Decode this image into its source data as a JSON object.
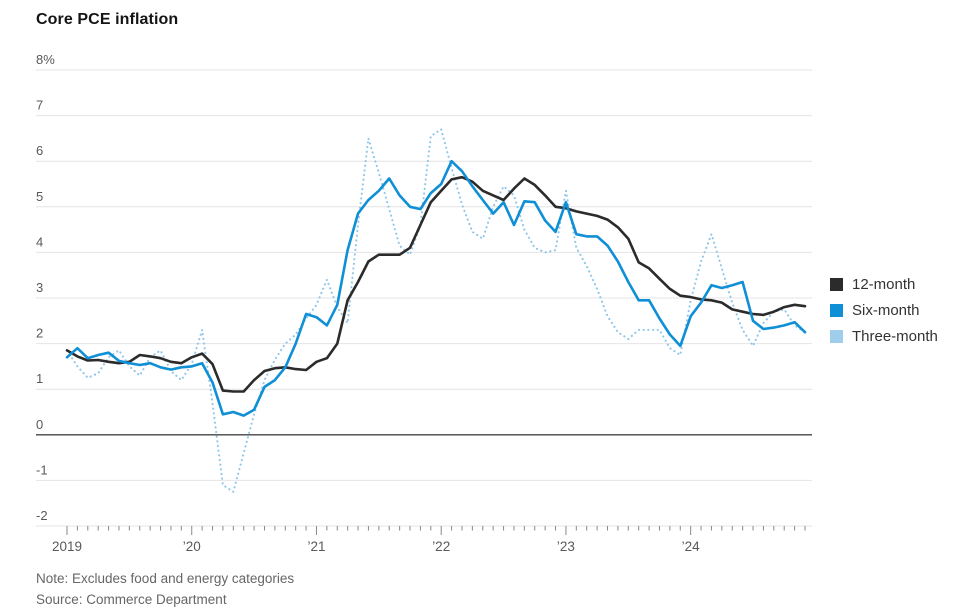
{
  "title": "Core PCE inflation",
  "note": "Note: Excludes food and energy categories",
  "source": "Source: Commerce Department",
  "legend": [
    {
      "label": "12-month",
      "color": "#2b2b2b"
    },
    {
      "label": "Six-month",
      "color": "#0f8fd6"
    },
    {
      "label": "Three-month",
      "color": "#9fcdec"
    }
  ],
  "colors": {
    "grid": "#e4e4e4",
    "zero_line": "#444444",
    "tick": "#888888",
    "axis_label": "#595959",
    "title": "#141414",
    "note": "#666666"
  },
  "chart_data": {
    "type": "line",
    "title": "Core PCE inflation",
    "ylabel": "",
    "xlabel": "",
    "ylim": [
      -2,
      8
    ],
    "grid": "horizontal",
    "legend_position": "right",
    "y_ticks": [
      {
        "value": 8,
        "label": "8%"
      },
      {
        "value": 7,
        "label": "7"
      },
      {
        "value": 6,
        "label": "6"
      },
      {
        "value": 5,
        "label": "5"
      },
      {
        "value": 4,
        "label": "4"
      },
      {
        "value": 3,
        "label": "3"
      },
      {
        "value": 2,
        "label": "2"
      },
      {
        "value": 1,
        "label": "1"
      },
      {
        "value": 0,
        "label": "0"
      },
      {
        "value": -1,
        "label": "-1"
      },
      {
        "value": -2,
        "label": "-2"
      }
    ],
    "x_ticks": [
      {
        "month_index": 0,
        "label": "2019"
      },
      {
        "month_index": 12,
        "label": "’20"
      },
      {
        "month_index": 24,
        "label": "’21"
      },
      {
        "month_index": 36,
        "label": "’22"
      },
      {
        "month_index": 48,
        "label": "’23"
      },
      {
        "month_index": 60,
        "label": "’24"
      }
    ],
    "x": [
      "2019-01",
      "2019-02",
      "2019-03",
      "2019-04",
      "2019-05",
      "2019-06",
      "2019-07",
      "2019-08",
      "2019-09",
      "2019-10",
      "2019-11",
      "2019-12",
      "2020-01",
      "2020-02",
      "2020-03",
      "2020-04",
      "2020-05",
      "2020-06",
      "2020-07",
      "2020-08",
      "2020-09",
      "2020-10",
      "2020-11",
      "2020-12",
      "2021-01",
      "2021-02",
      "2021-03",
      "2021-04",
      "2021-05",
      "2021-06",
      "2021-07",
      "2021-08",
      "2021-09",
      "2021-10",
      "2021-11",
      "2021-12",
      "2022-01",
      "2022-02",
      "2022-03",
      "2022-04",
      "2022-05",
      "2022-06",
      "2022-07",
      "2022-08",
      "2022-09",
      "2022-10",
      "2022-11",
      "2022-12",
      "2023-01",
      "2023-02",
      "2023-03",
      "2023-04",
      "2023-05",
      "2023-06",
      "2023-07",
      "2023-08",
      "2023-09",
      "2023-10",
      "2023-11",
      "2023-12",
      "2024-01",
      "2024-02",
      "2024-03",
      "2024-04",
      "2024-05",
      "2024-06",
      "2024-07",
      "2024-08",
      "2024-09",
      "2024-10",
      "2024-11",
      "2024-12"
    ],
    "series": [
      {
        "name": "12-month",
        "style": "solid",
        "color": "#2b2b2b",
        "values": [
          1.85,
          1.72,
          1.63,
          1.64,
          1.6,
          1.57,
          1.6,
          1.75,
          1.72,
          1.68,
          1.6,
          1.57,
          1.7,
          1.78,
          1.55,
          0.97,
          0.95,
          0.95,
          1.2,
          1.4,
          1.46,
          1.48,
          1.44,
          1.42,
          1.6,
          1.68,
          2.0,
          2.95,
          3.35,
          3.8,
          3.95,
          3.95,
          3.95,
          4.1,
          4.6,
          5.1,
          5.35,
          5.6,
          5.65,
          5.55,
          5.35,
          5.25,
          5.15,
          5.4,
          5.62,
          5.48,
          5.25,
          5.0,
          4.97,
          4.9,
          4.85,
          4.8,
          4.72,
          4.55,
          4.3,
          3.78,
          3.65,
          3.42,
          3.2,
          3.05,
          3.02,
          2.97,
          2.95,
          2.9,
          2.75,
          2.7,
          2.65,
          2.63,
          2.7,
          2.8,
          2.85,
          2.82
        ]
      },
      {
        "name": "Six-month",
        "style": "solid",
        "color": "#0f8fd6",
        "values": [
          1.7,
          1.9,
          1.68,
          1.75,
          1.8,
          1.62,
          1.57,
          1.53,
          1.57,
          1.48,
          1.43,
          1.48,
          1.5,
          1.57,
          1.15,
          0.45,
          0.5,
          0.42,
          0.55,
          1.05,
          1.2,
          1.48,
          2.0,
          2.65,
          2.58,
          2.4,
          2.85,
          4.05,
          4.85,
          5.15,
          5.35,
          5.62,
          5.25,
          5.0,
          4.95,
          5.3,
          5.5,
          6.0,
          5.78,
          5.45,
          5.15,
          4.85,
          5.1,
          4.6,
          5.12,
          5.1,
          4.7,
          4.45,
          5.1,
          4.4,
          4.35,
          4.35,
          4.15,
          3.8,
          3.35,
          2.95,
          2.95,
          2.55,
          2.2,
          1.95,
          2.6,
          2.9,
          3.28,
          3.22,
          3.28,
          3.35,
          2.5,
          2.32,
          2.35,
          2.4,
          2.47,
          2.25
        ]
      },
      {
        "name": "Three-month",
        "style": "dotted",
        "color": "#8ec6ea",
        "values": [
          1.85,
          1.5,
          1.25,
          1.35,
          1.7,
          1.85,
          1.5,
          1.3,
          1.7,
          1.85,
          1.4,
          1.2,
          1.55,
          2.3,
          0.7,
          -1.1,
          -1.25,
          -0.4,
          0.45,
          1.2,
          1.65,
          2.0,
          2.2,
          2.55,
          2.85,
          3.4,
          2.8,
          2.45,
          4.6,
          6.5,
          5.75,
          4.95,
          4.15,
          3.95,
          4.6,
          6.55,
          6.7,
          5.85,
          5.05,
          4.45,
          4.3,
          5.0,
          5.45,
          5.25,
          4.5,
          4.1,
          4.0,
          4.05,
          5.35,
          4.1,
          3.7,
          3.2,
          2.6,
          2.25,
          2.1,
          2.3,
          2.3,
          2.3,
          1.9,
          1.75,
          2.95,
          3.8,
          4.4,
          3.65,
          2.9,
          2.3,
          1.95,
          2.45,
          2.7,
          2.75,
          2.4,
          2.25
        ]
      }
    ]
  }
}
